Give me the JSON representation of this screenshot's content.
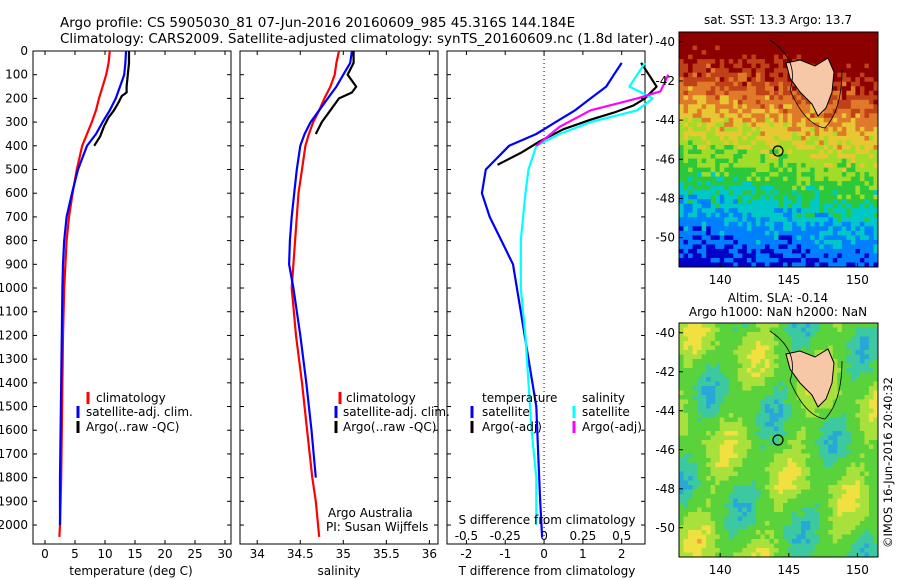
{
  "title_line1": "Argo profile: CS 5905030_81 07-Jun-2016 20160609_985 45.316S 144.184E",
  "title_line2": "Climatology: CARS2009. Satellite-adjusted climatology: synTS_20160609.nc (1.8d later)",
  "credit": "Argo Australia",
  "pi": "PI: Susan Wijffels",
  "imos_stamp": "©IMOS 16-Jun-2016 20:40:32",
  "sst_title": "sat. SST: 13.3 Argo: 13.7",
  "sla_title1": "Altim. SLA: -0.14",
  "sla_title2": "Argo h1000: NaN h2000: NaN",
  "colors": {
    "climatology": "#ff0000",
    "satellite": "#0000ff",
    "argo": "#000000",
    "satellite_s": "#00ffff",
    "argo_s": "#ff00ff"
  },
  "chart_data": [
    {
      "type": "line",
      "xlabel": "temperature (deg C)",
      "ylabel": "",
      "xlim": [
        -2,
        31
      ],
      "ylim": [
        2080,
        0
      ],
      "xticks": [
        "0",
        "5",
        "10",
        "15",
        "20",
        "25",
        "30"
      ],
      "yticks": [
        "0",
        "100",
        "200",
        "300",
        "400",
        "500",
        "600",
        "700",
        "800",
        "900",
        "1000",
        "1100",
        "1200",
        "1300",
        "1400",
        "1500",
        "1600",
        "1700",
        "1800",
        "1900",
        "2000"
      ],
      "legend": [
        "climatology",
        "satellite-adj. clim.",
        "Argo(..raw -QC)"
      ],
      "series": [
        {
          "name": "climatology",
          "x": [
            10.8,
            10.6,
            10.2,
            9.6,
            9,
            8.5,
            7.8,
            7,
            6.2,
            5.3,
            4.6,
            4,
            3.6,
            3.4,
            3.2,
            3,
            2.9,
            2.8,
            2.7,
            2.6,
            2.5,
            2.4
          ],
          "y": [
            0,
            50,
            100,
            150,
            200,
            250,
            300,
            350,
            400,
            500,
            600,
            700,
            800,
            900,
            1000,
            1200,
            1400,
            1600,
            1800,
            1900,
            2000,
            2050
          ]
        },
        {
          "name": "satellite-adj. clim.",
          "x": [
            13.5,
            13.4,
            13.2,
            12.5,
            11.8,
            10.8,
            9.6,
            8.5,
            7,
            5.5,
            4.5,
            3.6,
            3.2,
            3,
            2.9,
            2.8,
            2.7,
            2.6,
            2.5,
            2.5
          ],
          "y": [
            0,
            50,
            100,
            150,
            200,
            250,
            300,
            350,
            400,
            500,
            600,
            700,
            800,
            900,
            1000,
            1200,
            1400,
            1600,
            1800,
            2000
          ]
        },
        {
          "name": "Argo(..raw -QC)",
          "x": [
            14,
            14,
            13.8,
            13.6,
            13.6,
            12.8,
            12.2,
            11.5,
            10.6,
            9.8,
            9.2,
            8.2
          ],
          "y": [
            0,
            50,
            100,
            150,
            175,
            190,
            220,
            250,
            280,
            320,
            360,
            400
          ]
        }
      ]
    },
    {
      "type": "line",
      "xlabel": "salinity",
      "ylim": [
        2080,
        0
      ],
      "xlim": [
        33.8,
        36.1
      ],
      "xticks": [
        "34",
        "34.5",
        "35",
        "35.5",
        "36"
      ],
      "legend": [
        "climatology",
        "satellite-adj. clim.",
        "Argo(..raw -QC)"
      ],
      "series": [
        {
          "name": "climatology",
          "x": [
            34.95,
            34.92,
            34.9,
            34.85,
            34.78,
            34.72,
            34.65,
            34.6,
            34.56,
            34.52,
            34.48,
            34.46,
            34.44,
            34.42,
            34.4,
            34.45,
            34.52,
            34.58,
            34.64,
            34.68,
            34.72
          ],
          "y": [
            0,
            50,
            100,
            150,
            200,
            250,
            300,
            350,
            400,
            500,
            600,
            700,
            800,
            900,
            1000,
            1200,
            1400,
            1600,
            1800,
            1900,
            2050
          ]
        },
        {
          "name": "satellite-adj. clim.",
          "x": [
            35.1,
            35.08,
            35.0,
            34.92,
            34.82,
            34.72,
            34.62,
            34.55,
            34.5,
            34.46,
            34.43,
            34.4,
            34.38,
            34.37,
            34.42,
            34.5,
            34.57,
            34.63,
            34.68
          ],
          "y": [
            0,
            50,
            100,
            150,
            200,
            250,
            300,
            350,
            400,
            500,
            600,
            700,
            800,
            900,
            1000,
            1200,
            1400,
            1600,
            1800
          ]
        },
        {
          "name": "Argo(..raw -QC)",
          "x": [
            35.12,
            35.12,
            35.05,
            35.15,
            35.1,
            34.95,
            34.85,
            34.75,
            34.68
          ],
          "y": [
            0,
            50,
            100,
            150,
            175,
            200,
            250,
            300,
            350
          ]
        }
      ]
    },
    {
      "type": "line",
      "xlabel": "T difference from climatology",
      "xlabel2": "S difference from climatology",
      "xlim": [
        -2.5,
        2.6
      ],
      "ylim": [
        2080,
        0
      ],
      "xticks": [
        "-2",
        "-1",
        "0",
        "1",
        "2"
      ],
      "xticks_s": [
        "-0.5",
        "-0.25",
        "0",
        "0.25",
        "0.5"
      ],
      "legend_titles": [
        "temperature",
        "salinity"
      ],
      "legend": [
        "satellite",
        "Argo(-adj)",
        "satellite",
        "Argo(-adj)"
      ],
      "series": [
        {
          "name": "temperature satellite",
          "x": [
            2,
            1.8,
            1.6,
            1.2,
            0.8,
            0.3,
            -0.2,
            -0.9,
            -1.5,
            -1.6,
            -1.4,
            -1.1,
            -0.8,
            -0.6,
            -0.4,
            -0.2,
            -0.15,
            -0.1,
            -0.05
          ],
          "y": [
            50,
            100,
            150,
            200,
            250,
            300,
            350,
            400,
            500,
            600,
            700,
            800,
            900,
            1100,
            1300,
            1500,
            1700,
            1900,
            2050
          ]
        },
        {
          "name": "temperature Argo(-adj)",
          "x": [
            2.5,
            2.7,
            2.9,
            2.6,
            2.3,
            1.8,
            1.2,
            0.5,
            -0.1,
            -0.6,
            -1.2
          ],
          "y": [
            50,
            100,
            150,
            200,
            230,
            260,
            290,
            330,
            380,
            430,
            480
          ]
        },
        {
          "name": "salinity satellite",
          "x": [
            0.65,
            0.6,
            0.55,
            0.7,
            0.6,
            0.3,
            0.1,
            -0.05,
            -0.1,
            -0.12,
            -0.15,
            -0.15,
            -0.12,
            -0.1,
            -0.08,
            -0.05,
            -0.05
          ],
          "y": [
            50,
            100,
            150,
            200,
            250,
            300,
            350,
            400,
            500,
            600,
            800,
            1000,
            1200,
            1400,
            1600,
            1800,
            2000
          ]
        },
        {
          "name": "salinity Argo(-adj)",
          "x": [
            0.8,
            0.75,
            0.6,
            0.3,
            0.1,
            -0.05
          ],
          "y": [
            100,
            170,
            200,
            250,
            320,
            400
          ]
        }
      ]
    },
    {
      "type": "heatmap",
      "title": "sat. SST: 13.3 Argo: 13.7",
      "xticks": [
        "140",
        "145",
        "150"
      ],
      "yticks": [
        "-40",
        "-42",
        "-44",
        "-46",
        "-48",
        "-50"
      ]
    },
    {
      "type": "heatmap",
      "title": "Altim. SLA: -0.14",
      "xticks": [
        "140",
        "145",
        "150"
      ],
      "yticks": [
        "-40",
        "-42",
        "-44",
        "-46",
        "-48",
        "-50"
      ]
    }
  ]
}
